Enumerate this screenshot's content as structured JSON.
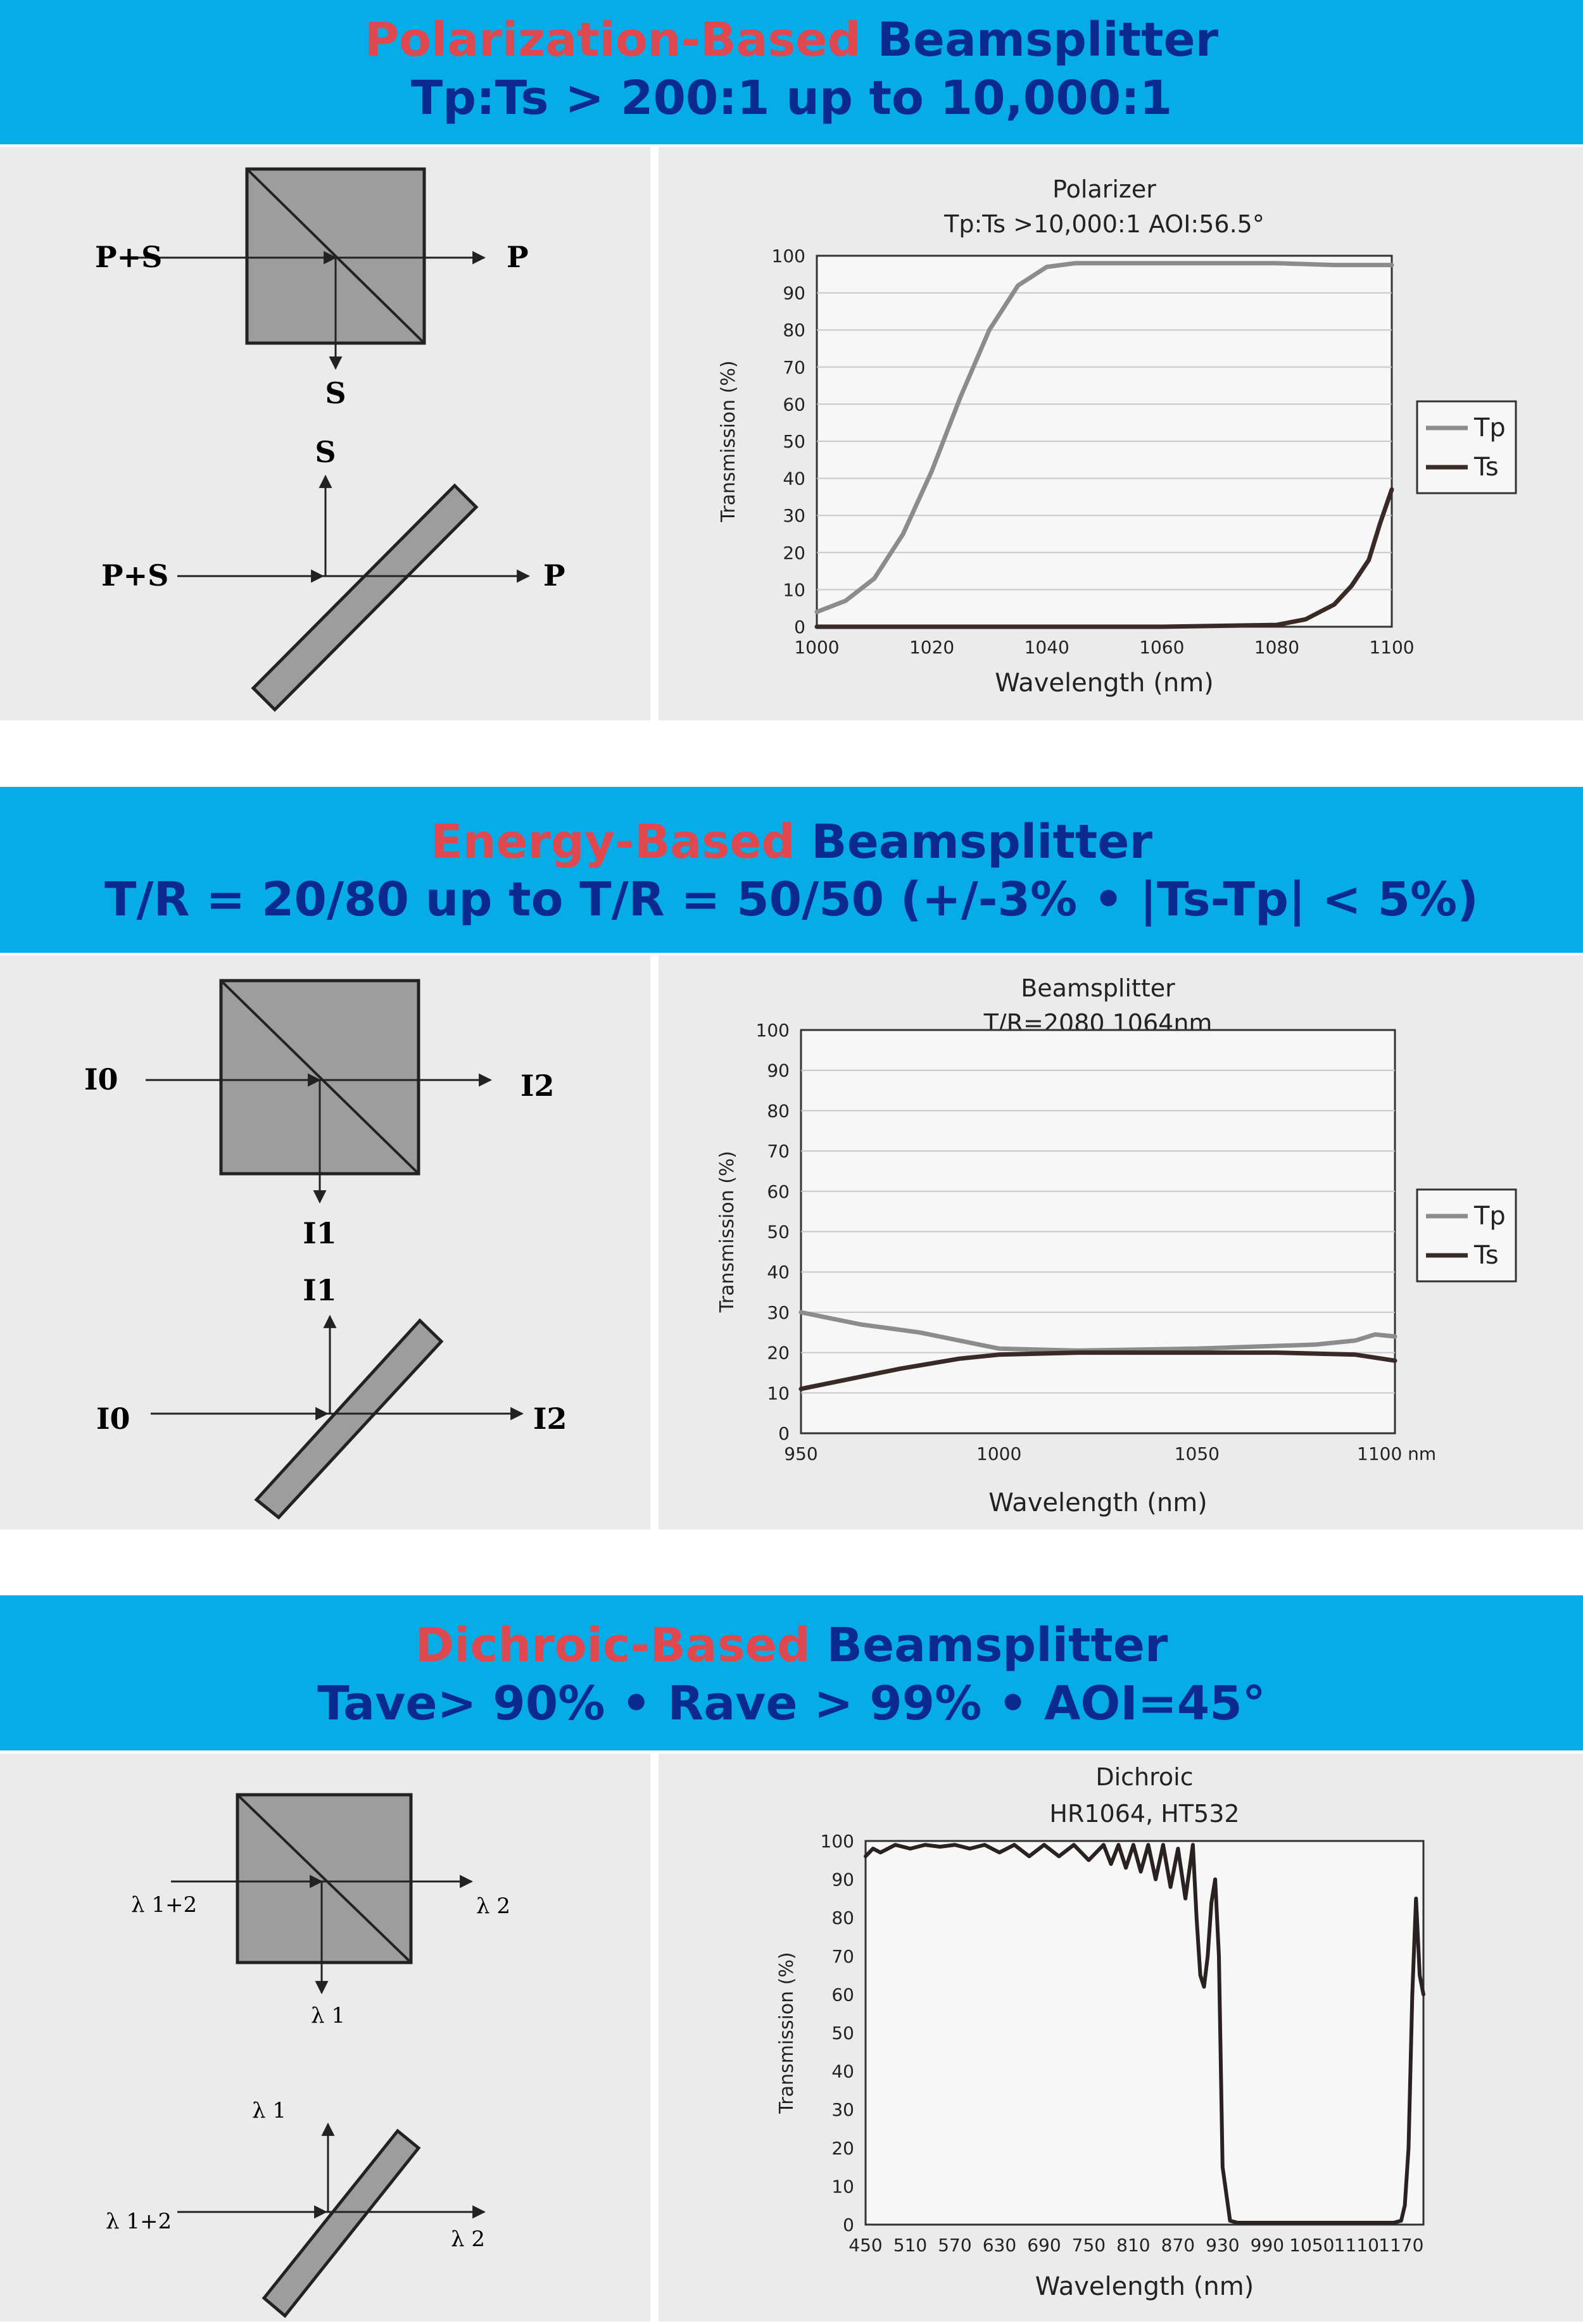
{
  "sections": [
    {
      "heading": {
        "accent": "Polarization-Based",
        "rest": " Beamsplitter",
        "subline": "Tp:Ts > 200:1 up to 10,000:1"
      },
      "diagram": {
        "in_label": "P+S",
        "out_label": "P",
        "refl_label": "S"
      }
    },
    {
      "heading": {
        "accent": "Energy-Based",
        "rest": " Beamsplitter",
        "subline": "T/R = 20/80 up to T/R = 50/50 (+/-3% • |Ts-Tp| < 5%)"
      },
      "diagram": {
        "in_label": "I0",
        "out_label": "I2",
        "refl_label": "I1"
      }
    },
    {
      "heading": {
        "accent": "Dichroic-Based",
        "rest": " Beamsplitter",
        "subline": "Tave> 90% • Rave > 99% • AOI=45°"
      },
      "diagram": {
        "in_label": "λ 1+2",
        "out_label": "λ 2",
        "refl_label": "λ 1"
      }
    }
  ],
  "colors": {
    "banner": "#06ace8",
    "heading_blue": "#0b2a8f",
    "heading_red": "#e0484f",
    "panel": "#ebebeb",
    "tp_line": "#8c8c8c",
    "ts_line": "#3a2a26"
  },
  "chart_data": [
    {
      "type": "line",
      "title": "Polarizer",
      "subtitle": "Tp:Ts >10,000:1 AOI:56.5°",
      "xlabel": "Wavelength (nm)",
      "ylabel": "Transmission (%)",
      "xlim": [
        1000,
        1100
      ],
      "ylim": [
        0,
        100
      ],
      "xticks": [
        1000,
        1020,
        1040,
        1060,
        1080,
        1100
      ],
      "xtick_labels": [
        "1000",
        "1020",
        "1040",
        "1060",
        "1080",
        "1100"
      ],
      "yticks": [
        0,
        10,
        20,
        30,
        40,
        50,
        60,
        70,
        80,
        90,
        100
      ],
      "grid": true,
      "legend": "right",
      "series": [
        {
          "name": "Tp",
          "x": [
            1000,
            1005,
            1010,
            1015,
            1020,
            1025,
            1030,
            1035,
            1040,
            1045,
            1050,
            1060,
            1070,
            1080,
            1090,
            1100
          ],
          "y": [
            4,
            7,
            13,
            25,
            42,
            62,
            80,
            92,
            97,
            98,
            98,
            98,
            98,
            98,
            97.5,
            97.5
          ]
        },
        {
          "name": "Ts",
          "x": [
            1000,
            1030,
            1060,
            1080,
            1085,
            1090,
            1093,
            1096,
            1098,
            1100
          ],
          "y": [
            0,
            0,
            0,
            0.5,
            2,
            6,
            11,
            18,
            28,
            37
          ]
        }
      ]
    },
    {
      "type": "line",
      "title": "Beamsplitter",
      "subtitle": "T/R=2080 1064nm",
      "xlabel": "Wavelength (nm)",
      "ylabel": "Transmission (%)",
      "xlim": [
        950,
        1100
      ],
      "ylim": [
        0,
        100
      ],
      "xticks": [
        950,
        1000,
        1050,
        1100
      ],
      "xtick_labels": [
        "950",
        "1000",
        "1050",
        "1100 nm"
      ],
      "yticks": [
        0,
        10,
        20,
        30,
        40,
        50,
        60,
        70,
        80,
        90,
        100
      ],
      "grid": true,
      "legend": "right",
      "series": [
        {
          "name": "Tp",
          "x": [
            950,
            955,
            965,
            980,
            995,
            1000,
            1020,
            1050,
            1080,
            1090,
            1095,
            1100
          ],
          "y": [
            30,
            29,
            27,
            25,
            22,
            21,
            20.5,
            21,
            22,
            23,
            24.5,
            24
          ]
        },
        {
          "name": "Ts",
          "x": [
            950,
            960,
            975,
            990,
            1000,
            1020,
            1050,
            1070,
            1090,
            1100
          ],
          "y": [
            11,
            13,
            16,
            18.5,
            19.5,
            20,
            20,
            20,
            19.5,
            18
          ]
        }
      ]
    },
    {
      "type": "line",
      "title": "Dichroic",
      "subtitle": "HR1064, HT532",
      "xlabel": "Wavelength (nm)",
      "ylabel": "Transmission (%)",
      "xlim": [
        450,
        1200
      ],
      "ylim": [
        0,
        100
      ],
      "xticks": [
        450,
        510,
        570,
        630,
        690,
        750,
        810,
        870,
        930,
        990,
        1050,
        1110,
        1170
      ],
      "xtick_labels": [
        "450",
        "510",
        "570",
        "630",
        "690",
        "750",
        "810",
        "870",
        "930",
        "990",
        "1050",
        "1110",
        "1170"
      ],
      "yticks": [
        0,
        10,
        20,
        30,
        40,
        50,
        60,
        70,
        80,
        90,
        100
      ],
      "grid": false,
      "legend": "none",
      "series": [
        {
          "x": [
            450,
            460,
            470,
            490,
            510,
            530,
            550,
            570,
            590,
            610,
            630,
            650,
            670,
            690,
            710,
            730,
            750,
            770,
            780,
            790,
            800,
            810,
            820,
            830,
            840,
            850,
            860,
            870,
            880,
            890,
            895,
            900,
            905,
            910,
            915,
            920,
            925,
            930,
            940,
            950,
            990,
            1050,
            1110,
            1160,
            1170,
            1175,
            1180,
            1185,
            1190,
            1195,
            1200
          ],
          "y": [
            96,
            98,
            97,
            99,
            98,
            99,
            98.5,
            99,
            98,
            99,
            97,
            99,
            96,
            99,
            96,
            99,
            95,
            99,
            94,
            99,
            93,
            99,
            92,
            99,
            90,
            99,
            88,
            98,
            85,
            99,
            80,
            65,
            62,
            70,
            84,
            90,
            70,
            15,
            1,
            0.5,
            0.5,
            0.5,
            0.5,
            0.5,
            1,
            5,
            20,
            60,
            85,
            65,
            60
          ]
        }
      ]
    }
  ]
}
